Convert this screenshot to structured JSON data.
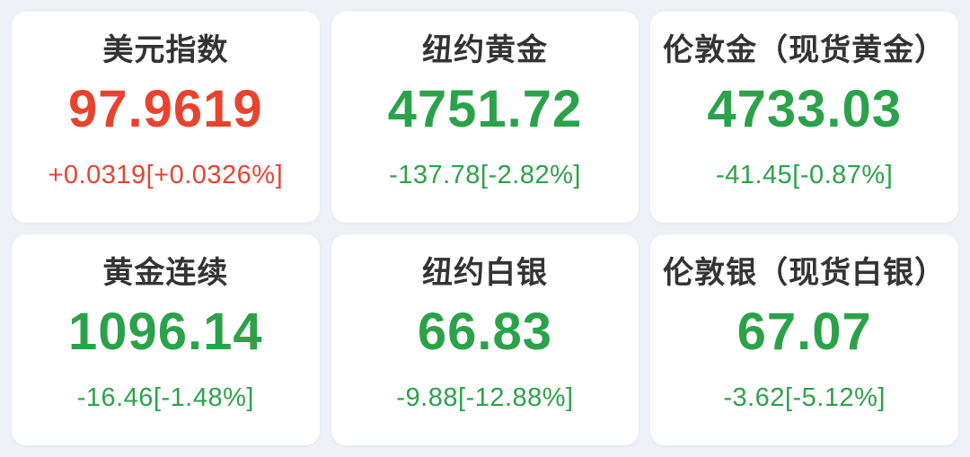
{
  "page": {
    "background_color": "#eef1f7",
    "card_background_color": "#ffffff",
    "title_color": "#333333",
    "up_color": "#e8432f",
    "down_color": "#2ba24a"
  },
  "cards": [
    {
      "name": "美元指数",
      "value": "97.9619",
      "change": "+0.0319[+0.0326%]",
      "direction": "up"
    },
    {
      "name": "纽约黄金",
      "value": "4751.72",
      "change": "-137.78[-2.82%]",
      "direction": "down"
    },
    {
      "name": "伦敦金（现货黄金）",
      "value": "4733.03",
      "change": "-41.45[-0.87%]",
      "direction": "down"
    },
    {
      "name": "黄金连续",
      "value": "1096.14",
      "change": "-16.46[-1.48%]",
      "direction": "down"
    },
    {
      "name": "纽约白银",
      "value": "66.83",
      "change": "-9.88[-12.88%]",
      "direction": "down"
    },
    {
      "name": "伦敦银（现货白银）",
      "value": "67.07",
      "change": "-3.62[-5.12%]",
      "direction": "down"
    }
  ]
}
